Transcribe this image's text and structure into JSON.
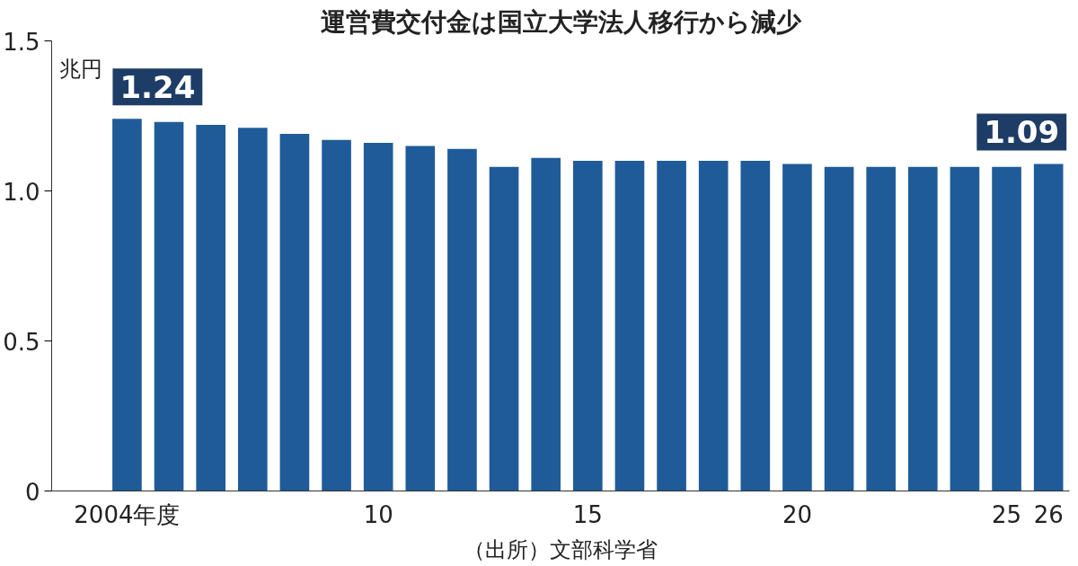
{
  "chart_data": {
    "type": "bar",
    "title": "運営費交付金は国立大学法人移行から減少",
    "ylabel": "兆円",
    "x": [
      2004,
      2005,
      2006,
      2007,
      2008,
      2009,
      2010,
      2011,
      2012,
      2013,
      2014,
      2015,
      2016,
      2017,
      2018,
      2019,
      2020,
      2021,
      2022,
      2023,
      2024,
      2025,
      2026
    ],
    "values": [
      1.24,
      1.23,
      1.22,
      1.21,
      1.19,
      1.17,
      1.16,
      1.15,
      1.14,
      1.08,
      1.11,
      1.1,
      1.1,
      1.1,
      1.1,
      1.1,
      1.09,
      1.08,
      1.08,
      1.08,
      1.08,
      1.08,
      1.09
    ],
    "value_labels": [
      "1.24",
      null,
      null,
      null,
      null,
      null,
      null,
      null,
      null,
      null,
      null,
      null,
      null,
      null,
      null,
      null,
      null,
      null,
      null,
      null,
      null,
      null,
      "1.09"
    ],
    "color": "#1f5b98",
    "xlim": [
      2002.2,
      2026.5
    ],
    "xticks": [
      {
        "value": 2004,
        "label": "2004年度"
      },
      {
        "value": 2010,
        "label": "10"
      },
      {
        "value": 2015,
        "label": "15"
      },
      {
        "value": 2020,
        "label": "20"
      },
      {
        "value": 2025,
        "label": "25"
      },
      {
        "value": 2026,
        "label": "26"
      }
    ],
    "ylim": [
      0,
      1.5
    ],
    "yticks": [
      {
        "value": 0,
        "label": "0"
      },
      {
        "value": 0.5,
        "label": "0.5"
      },
      {
        "value": 1,
        "label": "1.0"
      },
      {
        "value": 1.5,
        "label": "1.5"
      }
    ],
    "grid": false,
    "annotations": [
      "（出所）文部科学省"
    ]
  }
}
